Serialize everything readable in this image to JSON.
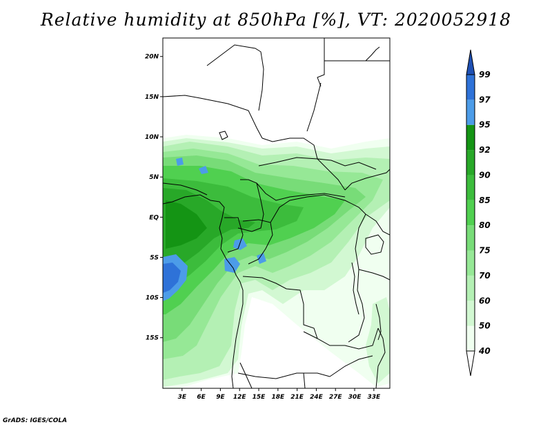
{
  "title": "Relative humidity at 850hPa [%], VT: 2020052918",
  "credit": "GrADS: IGES/COLA",
  "map": {
    "lon_range": [
      0,
      35.5
    ],
    "lat_range": [
      -21.3,
      22.3
    ],
    "lon_ticks": [
      {
        "value": 3,
        "label": "3E"
      },
      {
        "value": 6,
        "label": "6E"
      },
      {
        "value": 9,
        "label": "9E"
      },
      {
        "value": 12,
        "label": "12E"
      },
      {
        "value": 15,
        "label": "15E"
      },
      {
        "value": 18,
        "label": "18E"
      },
      {
        "value": 21,
        "label": "21E"
      },
      {
        "value": 24,
        "label": "24E"
      },
      {
        "value": 27,
        "label": "27E"
      },
      {
        "value": 30,
        "label": "30E"
      },
      {
        "value": 33,
        "label": "33E"
      }
    ],
    "lat_ticks": [
      {
        "value": 20,
        "label": "20N"
      },
      {
        "value": 15,
        "label": "15N"
      },
      {
        "value": 10,
        "label": "10N"
      },
      {
        "value": 5,
        "label": "5N"
      },
      {
        "value": 0,
        "label": "EQ"
      },
      {
        "value": -5,
        "label": "5S"
      },
      {
        "value": -10,
        "label": "10S"
      },
      {
        "value": -15,
        "label": "15S"
      }
    ]
  },
  "colorbar": {
    "levels": [
      "40",
      "50",
      "60",
      "70",
      "75",
      "80",
      "85",
      "90",
      "92",
      "95",
      "97",
      "99"
    ],
    "colors": [
      "#f0fff0",
      "#d2f8d2",
      "#b4f0b4",
      "#96e896",
      "#78dc78",
      "#50d050",
      "#3cbc3c",
      "#28a828",
      "#149414",
      "#4c9ce8",
      "#2e72d8",
      "#1e50b4"
    ]
  }
}
